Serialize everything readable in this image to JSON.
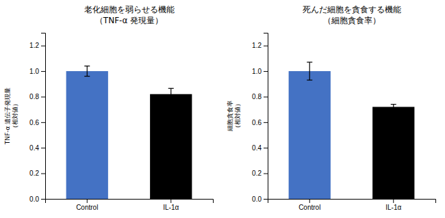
{
  "chart_data": [
    {
      "type": "bar",
      "title": "老化細胞を弱らせる機能\n（TNF-α 発現量）",
      "ylabel": "TNF-α 遺伝子発現量\n（相対値）",
      "categories": [
        "Control",
        "IL-1α"
      ],
      "values": [
        1.0,
        0.82
      ],
      "errors": [
        0.04,
        0.045
      ],
      "colors": [
        "#4472C4",
        "#000000"
      ],
      "ylim": [
        0,
        1.3
      ],
      "yticks": [
        {
          "value": 0,
          "label": "0.0"
        },
        0.2,
        0.4,
        0.6,
        0.8,
        {
          "value": 1.0,
          "label": "1.0"
        },
        1.2
      ]
    },
    {
      "type": "bar",
      "title": "死んだ細胞を貪食する機能\n（細胞貪食率）",
      "ylabel": "細胞貪食率\n（相対値）",
      "categories": [
        "Control",
        "IL-1α"
      ],
      "values": [
        1.0,
        0.72
      ],
      "errors": [
        0.07,
        0.02
      ],
      "colors": [
        "#4472C4",
        "#000000"
      ],
      "ylim": [
        0,
        1.3
      ],
      "yticks": [
        {
          "value": 0,
          "label": "0.0"
        },
        0.2,
        0.4,
        0.6,
        0.8,
        {
          "value": 1.0,
          "label": "1.0"
        },
        1.2
      ]
    }
  ]
}
